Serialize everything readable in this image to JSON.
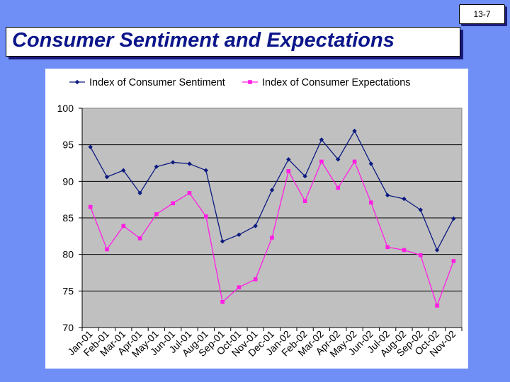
{
  "slide": {
    "number": "13-7"
  },
  "title": "Consumer Sentiment and Expectations",
  "colors": {
    "background": "#6f8ff7",
    "title": "#0b168a",
    "plot_area": "#c0c0c0",
    "sentiment": "#0c1a80",
    "expectations": "#ff1ee3"
  },
  "chart_data": {
    "type": "line",
    "title": "",
    "xlabel": "",
    "ylabel": "",
    "ylim": [
      70,
      100
    ],
    "yticks": [
      70,
      75,
      80,
      85,
      90,
      95,
      100
    ],
    "grid": "horizontal",
    "legend_position": "top",
    "categories": [
      "Jan-01",
      "Feb-01",
      "Mar-01",
      "Apr-01",
      "May-01",
      "Jun-01",
      "Jul-01",
      "Aug-01",
      "Sep-01",
      "Oct-01",
      "Nov-01",
      "Dec-01",
      "Jan-02",
      "Feb-02",
      "Mar-02",
      "Apr-02",
      "May-02",
      "Jun-02",
      "Jul-02",
      "Aug-02",
      "Sep-02",
      "Oct-02",
      "Nov-02"
    ],
    "series": [
      {
        "name": "Index of Consumer Sentiment",
        "marker": "diamond",
        "color": "#0c1a80",
        "values": [
          94.7,
          90.6,
          91.5,
          88.4,
          92.0,
          92.6,
          92.4,
          91.5,
          81.8,
          82.7,
          83.9,
          88.8,
          93.0,
          90.7,
          95.7,
          93.0,
          96.9,
          92.4,
          88.1,
          87.6,
          86.1,
          80.6,
          84.9
        ]
      },
      {
        "name": "Index of Consumer Expectations",
        "marker": "square",
        "color": "#ff1ee3",
        "values": [
          86.5,
          80.7,
          83.9,
          82.2,
          85.5,
          87.0,
          88.4,
          85.2,
          73.5,
          75.5,
          76.6,
          82.3,
          91.4,
          87.3,
          92.7,
          89.1,
          92.7,
          87.1,
          81.0,
          80.6,
          79.9,
          73.0,
          79.1
        ]
      }
    ]
  }
}
